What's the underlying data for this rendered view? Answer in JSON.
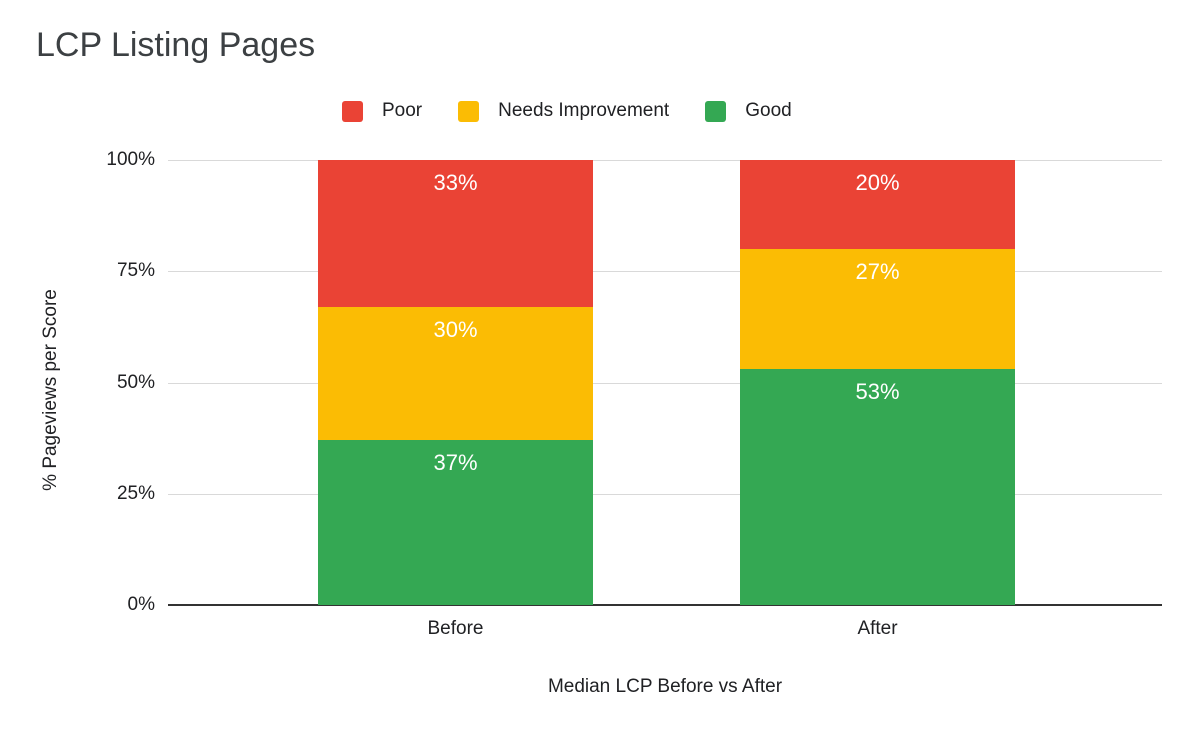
{
  "chart_data": {
    "type": "bar",
    "stacked": true,
    "title": "LCP Listing Pages",
    "xlabel": "Median LCP Before vs After",
    "ylabel": "% Pageviews per Score",
    "categories": [
      "Before",
      "After"
    ],
    "series": [
      {
        "name": "Poor",
        "color": "#EA4335",
        "values": [
          33,
          20
        ]
      },
      {
        "name": "Needs Improvement",
        "color": "#FBBC04",
        "values": [
          30,
          27
        ]
      },
      {
        "name": "Good",
        "color": "#34A853",
        "values": [
          37,
          53
        ]
      }
    ],
    "ylim": [
      0,
      100
    ],
    "yticks": [
      "0%",
      "25%",
      "50%",
      "75%",
      "100%"
    ],
    "data_label_suffix": "%",
    "grid": true,
    "legend_position": "top"
  },
  "colors": {
    "background": "#ffffff",
    "title_text": "#3c4043",
    "axis_text": "#202124",
    "gridline": "#d9d9d9",
    "axis_line": "#333333",
    "data_label_text": "#ffffff"
  }
}
